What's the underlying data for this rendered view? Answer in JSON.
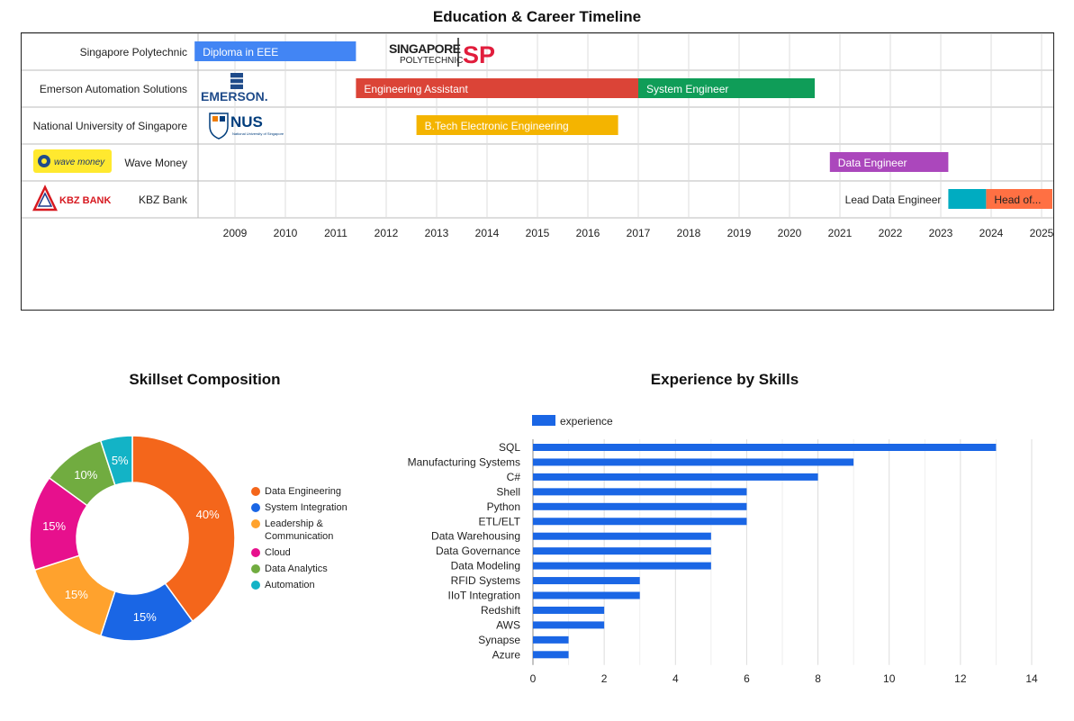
{
  "timeline": {
    "title": "Education & Career Timeline",
    "rows": [
      {
        "label": "Singapore Polytechnic",
        "logo": "sp-logo"
      },
      {
        "label": "Emerson Automation Solutions",
        "logo": "emerson-logo"
      },
      {
        "label": "National University of Singapore",
        "logo": "nus-logo"
      },
      {
        "label": "Wave Money",
        "logo": "wavemoney-logo"
      },
      {
        "label": "KBZ Bank",
        "logo": "kbz-logo"
      }
    ],
    "logos": {
      "sp_line1": "SINGAPORE",
      "sp_line2": "POLYTECHNIC",
      "sp_mark": "SP",
      "emerson": "EMERSON.",
      "nus": "NUS",
      "nus_sub": "National University of Singapore",
      "wave": "wave money",
      "kbz": "KBZ BANK"
    },
    "years": [
      "2009",
      "2010",
      "2011",
      "2012",
      "2013",
      "2014",
      "2015",
      "2016",
      "2017",
      "2018",
      "2019",
      "2020",
      "2021",
      "2022",
      "2023",
      "2024",
      "2025"
    ],
    "bars": [
      {
        "row": 0,
        "start": 2008.2,
        "end": 2011.4,
        "label": "Diploma in EEE",
        "color": "#4285f4"
      },
      {
        "row": 1,
        "start": 2011.4,
        "end": 2017.0,
        "label": "Engineering Assistant",
        "color": "#db4437"
      },
      {
        "row": 1,
        "start": 2017.0,
        "end": 2020.5,
        "label": "System Engineer",
        "color": "#0f9d58"
      },
      {
        "row": 2,
        "start": 2012.6,
        "end": 2016.6,
        "label": "B.Tech Electronic Engineering",
        "color": "#f4b400"
      },
      {
        "row": 3,
        "start": 2020.8,
        "end": 2023.15,
        "label": "Data Engineer",
        "color": "#ab47bc"
      },
      {
        "row": 4,
        "start": 2023.15,
        "end": 2023.9,
        "label": "Lead Data Engineer",
        "color": "#00acc1",
        "label_outside": true
      },
      {
        "row": 4,
        "start": 2023.9,
        "end": 2025.25,
        "label": "Head of...",
        "color": "#ff7043",
        "dark_text": true
      }
    ]
  },
  "pie": {
    "title": "Skillset Composition",
    "chart_data": {
      "type": "pie",
      "title": "Skillset Composition",
      "legend_position": "right",
      "slices": [
        {
          "name": "Data Engineering",
          "value": 40,
          "label": "40%",
          "color": "#f4661b"
        },
        {
          "name": "System Integration",
          "value": 15,
          "label": "15%",
          "color": "#1a66e5"
        },
        {
          "name": "Leadership & Communication",
          "value": 15,
          "label": "15%",
          "color": "#ffa22d"
        },
        {
          "name": "Cloud",
          "value": 15,
          "label": "15%",
          "color": "#e7108d"
        },
        {
          "name": "Data Analytics",
          "value": 10,
          "label": "10%",
          "color": "#71ac40"
        },
        {
          "name": "Automation",
          "value": 5,
          "label": "5%",
          "color": "#13b3c6"
        }
      ]
    }
  },
  "chart_data": {
    "type": "bar",
    "orientation": "horizontal",
    "title": "Experience by Skills",
    "legend_position": "top-left",
    "series": [
      {
        "name": "experience",
        "color": "#1a66e5",
        "values": [
          13,
          9,
          8,
          6,
          6,
          6,
          5,
          5,
          5,
          3,
          3,
          2,
          2,
          1,
          1
        ]
      }
    ],
    "categories": [
      "SQL",
      "Manufacturing Systems",
      "C#",
      "Shell",
      "Python",
      "ETL/ELT",
      "Data Warehousing",
      "Data Governance",
      "Data Modeling",
      "RFID Systems",
      "IIoT Integration",
      "Redshift",
      "AWS",
      "Synapse",
      "Azure"
    ],
    "xlim": [
      0,
      14
    ],
    "xticks": [
      "0",
      "2",
      "4",
      "6",
      "8",
      "10",
      "12",
      "14"
    ],
    "grid": true
  }
}
